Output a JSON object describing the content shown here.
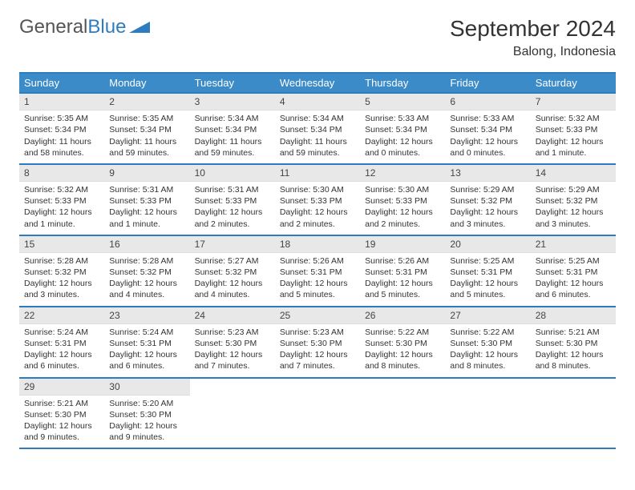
{
  "logo": {
    "text1": "General",
    "text2": "Blue"
  },
  "title": "September 2024",
  "location": "Balong, Indonesia",
  "colors": {
    "header_bg": "#3b8bc8",
    "border": "#2e7cc0",
    "daynum_bg": "#e8e8e8"
  },
  "day_names": [
    "Sunday",
    "Monday",
    "Tuesday",
    "Wednesday",
    "Thursday",
    "Friday",
    "Saturday"
  ],
  "weeks": [
    [
      {
        "n": "1",
        "sr": "Sunrise: 5:35 AM",
        "ss": "Sunset: 5:34 PM",
        "d1": "Daylight: 11 hours",
        "d2": "and 58 minutes."
      },
      {
        "n": "2",
        "sr": "Sunrise: 5:35 AM",
        "ss": "Sunset: 5:34 PM",
        "d1": "Daylight: 11 hours",
        "d2": "and 59 minutes."
      },
      {
        "n": "3",
        "sr": "Sunrise: 5:34 AM",
        "ss": "Sunset: 5:34 PM",
        "d1": "Daylight: 11 hours",
        "d2": "and 59 minutes."
      },
      {
        "n": "4",
        "sr": "Sunrise: 5:34 AM",
        "ss": "Sunset: 5:34 PM",
        "d1": "Daylight: 11 hours",
        "d2": "and 59 minutes."
      },
      {
        "n": "5",
        "sr": "Sunrise: 5:33 AM",
        "ss": "Sunset: 5:34 PM",
        "d1": "Daylight: 12 hours",
        "d2": "and 0 minutes."
      },
      {
        "n": "6",
        "sr": "Sunrise: 5:33 AM",
        "ss": "Sunset: 5:34 PM",
        "d1": "Daylight: 12 hours",
        "d2": "and 0 minutes."
      },
      {
        "n": "7",
        "sr": "Sunrise: 5:32 AM",
        "ss": "Sunset: 5:33 PM",
        "d1": "Daylight: 12 hours",
        "d2": "and 1 minute."
      }
    ],
    [
      {
        "n": "8",
        "sr": "Sunrise: 5:32 AM",
        "ss": "Sunset: 5:33 PM",
        "d1": "Daylight: 12 hours",
        "d2": "and 1 minute."
      },
      {
        "n": "9",
        "sr": "Sunrise: 5:31 AM",
        "ss": "Sunset: 5:33 PM",
        "d1": "Daylight: 12 hours",
        "d2": "and 1 minute."
      },
      {
        "n": "10",
        "sr": "Sunrise: 5:31 AM",
        "ss": "Sunset: 5:33 PM",
        "d1": "Daylight: 12 hours",
        "d2": "and 2 minutes."
      },
      {
        "n": "11",
        "sr": "Sunrise: 5:30 AM",
        "ss": "Sunset: 5:33 PM",
        "d1": "Daylight: 12 hours",
        "d2": "and 2 minutes."
      },
      {
        "n": "12",
        "sr": "Sunrise: 5:30 AM",
        "ss": "Sunset: 5:33 PM",
        "d1": "Daylight: 12 hours",
        "d2": "and 2 minutes."
      },
      {
        "n": "13",
        "sr": "Sunrise: 5:29 AM",
        "ss": "Sunset: 5:32 PM",
        "d1": "Daylight: 12 hours",
        "d2": "and 3 minutes."
      },
      {
        "n": "14",
        "sr": "Sunrise: 5:29 AM",
        "ss": "Sunset: 5:32 PM",
        "d1": "Daylight: 12 hours",
        "d2": "and 3 minutes."
      }
    ],
    [
      {
        "n": "15",
        "sr": "Sunrise: 5:28 AM",
        "ss": "Sunset: 5:32 PM",
        "d1": "Daylight: 12 hours",
        "d2": "and 3 minutes."
      },
      {
        "n": "16",
        "sr": "Sunrise: 5:28 AM",
        "ss": "Sunset: 5:32 PM",
        "d1": "Daylight: 12 hours",
        "d2": "and 4 minutes."
      },
      {
        "n": "17",
        "sr": "Sunrise: 5:27 AM",
        "ss": "Sunset: 5:32 PM",
        "d1": "Daylight: 12 hours",
        "d2": "and 4 minutes."
      },
      {
        "n": "18",
        "sr": "Sunrise: 5:26 AM",
        "ss": "Sunset: 5:31 PM",
        "d1": "Daylight: 12 hours",
        "d2": "and 5 minutes."
      },
      {
        "n": "19",
        "sr": "Sunrise: 5:26 AM",
        "ss": "Sunset: 5:31 PM",
        "d1": "Daylight: 12 hours",
        "d2": "and 5 minutes."
      },
      {
        "n": "20",
        "sr": "Sunrise: 5:25 AM",
        "ss": "Sunset: 5:31 PM",
        "d1": "Daylight: 12 hours",
        "d2": "and 5 minutes."
      },
      {
        "n": "21",
        "sr": "Sunrise: 5:25 AM",
        "ss": "Sunset: 5:31 PM",
        "d1": "Daylight: 12 hours",
        "d2": "and 6 minutes."
      }
    ],
    [
      {
        "n": "22",
        "sr": "Sunrise: 5:24 AM",
        "ss": "Sunset: 5:31 PM",
        "d1": "Daylight: 12 hours",
        "d2": "and 6 minutes."
      },
      {
        "n": "23",
        "sr": "Sunrise: 5:24 AM",
        "ss": "Sunset: 5:31 PM",
        "d1": "Daylight: 12 hours",
        "d2": "and 6 minutes."
      },
      {
        "n": "24",
        "sr": "Sunrise: 5:23 AM",
        "ss": "Sunset: 5:30 PM",
        "d1": "Daylight: 12 hours",
        "d2": "and 7 minutes."
      },
      {
        "n": "25",
        "sr": "Sunrise: 5:23 AM",
        "ss": "Sunset: 5:30 PM",
        "d1": "Daylight: 12 hours",
        "d2": "and 7 minutes."
      },
      {
        "n": "26",
        "sr": "Sunrise: 5:22 AM",
        "ss": "Sunset: 5:30 PM",
        "d1": "Daylight: 12 hours",
        "d2": "and 8 minutes."
      },
      {
        "n": "27",
        "sr": "Sunrise: 5:22 AM",
        "ss": "Sunset: 5:30 PM",
        "d1": "Daylight: 12 hours",
        "d2": "and 8 minutes."
      },
      {
        "n": "28",
        "sr": "Sunrise: 5:21 AM",
        "ss": "Sunset: 5:30 PM",
        "d1": "Daylight: 12 hours",
        "d2": "and 8 minutes."
      }
    ],
    [
      {
        "n": "29",
        "sr": "Sunrise: 5:21 AM",
        "ss": "Sunset: 5:30 PM",
        "d1": "Daylight: 12 hours",
        "d2": "and 9 minutes."
      },
      {
        "n": "30",
        "sr": "Sunrise: 5:20 AM",
        "ss": "Sunset: 5:30 PM",
        "d1": "Daylight: 12 hours",
        "d2": "and 9 minutes."
      },
      null,
      null,
      null,
      null,
      null
    ]
  ]
}
